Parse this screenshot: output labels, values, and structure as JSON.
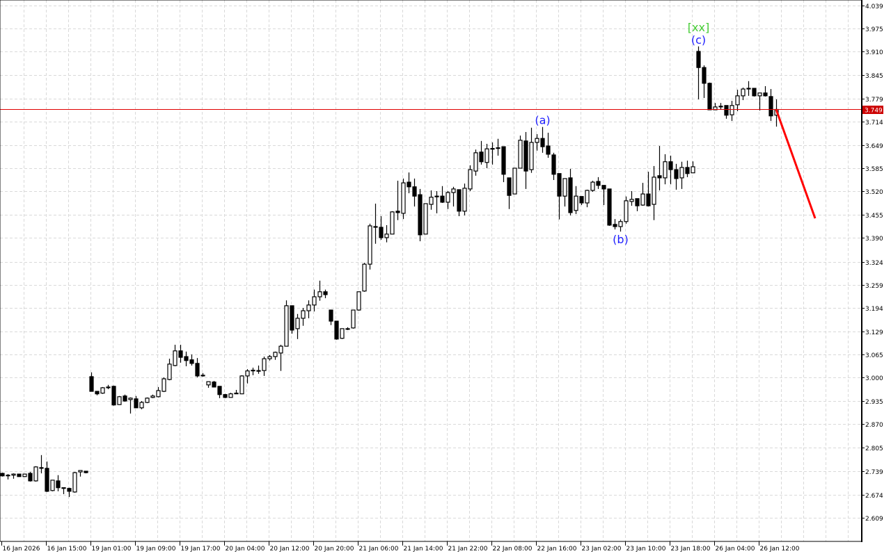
{
  "chart_data": {
    "type": "candlestick",
    "grid": true,
    "colors": {
      "bull_body": "#ffffff",
      "bear_body": "#000000",
      "outline": "#000000",
      "grid": "#d9d9d9",
      "current_price_line": "#e00000",
      "current_price_label_bg": "#cc0000",
      "forecast_line": "#ff0000",
      "wave_label": "#2020ff",
      "wave_degree_label": "#44cc33"
    },
    "y_axis": {
      "range": [
        2.609,
        4.039
      ],
      "ticks": [
        "4.039",
        "3.975",
        "3.910",
        "3.845",
        "3.779",
        "3.714",
        "3.649",
        "3.585",
        "3.520",
        "3.455",
        "3.390",
        "3.324",
        "3.259",
        "3.194",
        "3.129",
        "3.065",
        "3.000",
        "2.935",
        "2.870",
        "2.805",
        "2.739",
        "2.674",
        "2.609"
      ]
    },
    "x_axis": {
      "ticks": [
        {
          "bar": 0,
          "label": "16 Jan 2026"
        },
        {
          "bar": 8,
          "label": "16 Jan 15:00"
        },
        {
          "bar": 16,
          "label": "19 Jan 01:00"
        },
        {
          "bar": 24,
          "label": "19 Jan 09:00"
        },
        {
          "bar": 32,
          "label": "19 Jan 17:00"
        },
        {
          "bar": 40,
          "label": "20 Jan 04:00"
        },
        {
          "bar": 48,
          "label": "20 Jan 12:00"
        },
        {
          "bar": 56,
          "label": "20 Jan 20:00"
        },
        {
          "bar": 64,
          "label": "21 Jan 06:00"
        },
        {
          "bar": 72,
          "label": "21 Jan 14:00"
        },
        {
          "bar": 80,
          "label": "21 Jan 22:00"
        },
        {
          "bar": 88,
          "label": "22 Jan 08:00"
        },
        {
          "bar": 96,
          "label": "22 Jan 16:00"
        },
        {
          "bar": 104,
          "label": "23 Jan 02:00"
        },
        {
          "bar": 112,
          "label": "23 Jan 10:00"
        },
        {
          "bar": 120,
          "label": "23 Jan 18:00"
        },
        {
          "bar": 128,
          "label": "26 Jan 04:00"
        },
        {
          "bar": 136,
          "label": "26 Jan 12:00"
        }
      ]
    },
    "current_price": {
      "value": 3.749,
      "label": "3.749"
    },
    "candles_ohlc": [
      [
        2.733,
        2.735,
        2.724,
        2.726
      ],
      [
        2.728,
        2.731,
        2.716,
        2.728
      ],
      [
        2.728,
        2.733,
        2.718,
        2.731
      ],
      [
        2.731,
        2.731,
        2.724,
        2.724
      ],
      [
        2.724,
        2.731,
        2.724,
        2.731
      ],
      [
        2.733,
        2.737,
        2.71,
        2.712
      ],
      [
        2.712,
        2.753,
        2.71,
        2.751
      ],
      [
        2.749,
        2.784,
        2.733,
        2.748
      ],
      [
        2.747,
        2.766,
        2.681,
        2.683
      ],
      [
        2.685,
        2.714,
        2.683,
        2.714
      ],
      [
        2.712,
        2.728,
        2.683,
        2.693
      ],
      [
        2.693,
        2.693,
        2.675,
        2.691
      ],
      [
        2.691,
        2.693,
        2.667,
        2.683
      ],
      [
        2.681,
        2.737,
        2.679,
        2.735
      ],
      [
        2.737,
        2.741,
        2.724,
        2.741
      ],
      [
        2.739,
        2.739,
        2.733,
        2.735
      ],
      [
        3.003,
        3.015,
        2.962,
        2.962
      ],
      [
        2.962,
        2.962,
        2.951,
        2.955
      ],
      [
        2.957,
        2.974,
        2.955,
        2.972
      ],
      [
        2.974,
        2.98,
        2.968,
        2.973
      ],
      [
        2.976,
        2.978,
        2.922,
        2.924
      ],
      [
        2.925,
        2.949,
        2.924,
        2.947
      ],
      [
        2.949,
        2.953,
        2.933,
        2.935
      ],
      [
        2.939,
        2.945,
        2.9,
        2.943
      ],
      [
        2.941,
        2.949,
        2.916,
        2.916
      ],
      [
        2.916,
        2.935,
        2.912,
        2.931
      ],
      [
        2.931,
        2.945,
        2.929,
        2.943
      ],
      [
        2.945,
        2.953,
        2.943,
        2.949
      ],
      [
        2.947,
        2.974,
        2.945,
        2.964
      ],
      [
        2.962,
        3.001,
        2.96,
        2.997
      ],
      [
        2.995,
        3.053,
        2.993,
        3.038
      ],
      [
        3.034,
        3.092,
        3.032,
        3.075
      ],
      [
        3.075,
        3.092,
        3.042,
        3.057
      ],
      [
        3.059,
        3.073,
        3.032,
        3.048
      ],
      [
        3.05,
        3.065,
        3.034,
        3.04
      ],
      [
        3.04,
        3.055,
        3.001,
        3.005
      ],
      [
        3.007,
        3.013,
        3.003,
        3.006
      ],
      [
        2.98,
        2.989,
        2.972,
        2.989
      ],
      [
        2.988,
        2.991,
        2.974,
        2.974
      ],
      [
        2.976,
        2.976,
        2.943,
        2.953
      ],
      [
        2.953,
        2.955,
        2.943,
        2.945
      ],
      [
        2.945,
        2.958,
        2.945,
        2.955
      ],
      [
        2.957,
        2.966,
        2.955,
        2.955
      ],
      [
        2.955,
        3.007,
        2.955,
        3.005
      ],
      [
        3.005,
        3.024,
        2.984,
        3.019
      ],
      [
        3.02,
        3.028,
        3.007,
        3.021
      ],
      [
        3.02,
        3.034,
        3.011,
        3.019
      ],
      [
        3.02,
        3.059,
        3.005,
        3.053
      ],
      [
        3.053,
        3.063,
        3.048,
        3.059
      ],
      [
        3.059,
        3.073,
        3.05,
        3.071
      ],
      [
        3.069,
        3.092,
        3.019,
        3.088
      ],
      [
        3.088,
        3.216,
        3.088,
        3.201
      ],
      [
        3.201,
        3.201,
        3.123,
        3.133
      ],
      [
        3.137,
        3.178,
        3.108,
        3.166
      ],
      [
        3.166,
        3.195,
        3.145,
        3.187
      ],
      [
        3.187,
        3.216,
        3.166,
        3.203
      ],
      [
        3.203,
        3.246,
        3.185,
        3.226
      ],
      [
        3.226,
        3.271,
        3.215,
        3.24
      ],
      [
        3.24,
        3.246,
        3.222,
        3.232
      ],
      [
        3.189,
        3.189,
        3.147,
        3.158
      ],
      [
        3.158,
        3.158,
        3.106,
        3.108
      ],
      [
        3.11,
        3.137,
        3.108,
        3.137
      ],
      [
        3.137,
        3.141,
        3.133,
        3.137
      ],
      [
        3.139,
        3.189,
        3.137,
        3.189
      ],
      [
        3.189,
        3.24,
        3.187,
        3.24
      ],
      [
        3.242,
        3.321,
        3.24,
        3.317
      ],
      [
        3.317,
        3.43,
        3.302,
        3.424
      ],
      [
        3.422,
        3.486,
        3.374,
        3.421
      ],
      [
        3.42,
        3.451,
        3.385,
        3.391
      ],
      [
        3.391,
        3.426,
        3.378,
        3.401
      ],
      [
        3.401,
        3.465,
        3.401,
        3.463
      ],
      [
        3.465,
        3.55,
        3.44,
        3.461
      ],
      [
        3.459,
        3.556,
        3.443,
        3.544
      ],
      [
        3.546,
        3.573,
        3.515,
        3.533
      ],
      [
        3.533,
        3.556,
        3.478,
        3.507
      ],
      [
        3.511,
        3.527,
        3.381,
        3.399
      ],
      [
        3.401,
        3.486,
        3.401,
        3.486
      ],
      [
        3.484,
        3.523,
        3.469,
        3.504
      ],
      [
        3.507,
        3.521,
        3.459,
        3.506
      ],
      [
        3.507,
        3.535,
        3.488,
        3.49
      ],
      [
        3.49,
        3.521,
        3.471,
        3.517
      ],
      [
        3.517,
        3.533,
        3.478,
        3.527
      ],
      [
        3.525,
        3.525,
        3.451,
        3.465
      ],
      [
        3.465,
        3.542,
        3.453,
        3.529
      ],
      [
        3.527,
        3.593,
        3.521,
        3.581
      ],
      [
        3.577,
        3.637,
        3.564,
        3.628
      ],
      [
        3.63,
        3.661,
        3.595,
        3.603
      ],
      [
        3.601,
        3.653,
        3.585,
        3.639
      ],
      [
        3.639,
        3.657,
        3.595,
        3.64
      ],
      [
        3.642,
        3.667,
        3.62,
        3.641
      ],
      [
        3.645,
        3.645,
        3.546,
        3.568
      ],
      [
        3.558,
        3.558,
        3.471,
        3.509
      ],
      [
        3.513,
        3.585,
        3.513,
        3.585
      ],
      [
        3.585,
        3.676,
        3.585,
        3.663
      ],
      [
        3.661,
        3.686,
        3.527,
        3.577
      ],
      [
        3.581,
        3.698,
        3.572,
        3.657
      ],
      [
        3.657,
        3.68,
        3.634,
        3.668
      ],
      [
        3.668,
        3.7,
        3.628,
        3.645
      ],
      [
        3.647,
        3.684,
        3.614,
        3.624
      ],
      [
        3.622,
        3.628,
        3.552,
        3.568
      ],
      [
        3.57,
        3.57,
        3.442,
        3.507
      ],
      [
        3.507,
        3.556,
        3.478,
        3.556
      ],
      [
        3.558,
        3.583,
        3.453,
        3.461
      ],
      [
        3.467,
        3.535,
        3.457,
        3.507
      ],
      [
        3.506,
        3.506,
        3.482,
        3.488
      ],
      [
        3.488,
        3.525,
        3.476,
        3.523
      ],
      [
        3.523,
        3.55,
        3.519,
        3.546
      ],
      [
        3.548,
        3.56,
        3.527,
        3.537
      ],
      [
        3.537,
        3.537,
        3.482,
        3.527
      ],
      [
        3.527,
        3.527,
        3.424,
        3.426
      ],
      [
        3.428,
        3.443,
        3.414,
        3.422
      ],
      [
        3.422,
        3.442,
        3.408,
        3.436
      ],
      [
        3.436,
        3.506,
        3.43,
        3.494
      ],
      [
        3.492,
        3.521,
        3.48,
        3.498
      ],
      [
        3.5,
        3.5,
        3.465,
        3.48
      ],
      [
        3.482,
        3.544,
        3.48,
        3.513
      ],
      [
        3.513,
        3.575,
        3.478,
        3.48
      ],
      [
        3.484,
        3.591,
        3.44,
        3.56
      ],
      [
        3.564,
        3.647,
        3.523,
        3.558
      ],
      [
        3.558,
        3.624,
        3.54,
        3.603
      ],
      [
        3.603,
        3.62,
        3.54,
        3.581
      ],
      [
        3.581,
        3.597,
        3.525,
        3.556
      ],
      [
        3.558,
        3.603,
        3.527,
        3.587
      ],
      [
        3.587,
        3.606,
        3.56,
        3.57
      ],
      [
        3.572,
        3.604,
        3.572,
        3.589
      ],
      [
        3.911,
        3.925,
        3.777,
        3.866
      ],
      [
        3.866,
        3.872,
        3.781,
        3.822
      ],
      [
        3.822,
        3.824,
        3.748,
        3.748
      ],
      [
        3.748,
        3.767,
        3.748,
        3.756
      ],
      [
        3.758,
        3.767,
        3.748,
        3.758
      ],
      [
        3.76,
        3.76,
        3.723,
        3.733
      ],
      [
        3.734,
        3.773,
        3.717,
        3.76
      ],
      [
        3.762,
        3.804,
        3.744,
        3.787
      ],
      [
        3.787,
        3.81,
        3.775,
        3.806
      ],
      [
        3.808,
        3.828,
        3.787,
        3.808
      ],
      [
        3.808,
        3.808,
        3.785,
        3.787
      ],
      [
        3.787,
        3.795,
        3.746,
        3.795
      ],
      [
        3.795,
        3.814,
        3.785,
        3.787
      ],
      [
        3.785,
        3.806,
        3.717,
        3.731
      ],
      [
        3.733,
        3.777,
        3.701,
        3.749
      ]
    ],
    "annotations": [
      {
        "text": "(a)",
        "bar": 97,
        "anchor": "above-high",
        "color_key": "wave_label"
      },
      {
        "text": "(b)",
        "bar": 111,
        "anchor": "below-low",
        "color_key": "wave_label"
      },
      {
        "text": "(c)",
        "bar": 125,
        "anchor": "above-high",
        "color_key": "wave_label"
      },
      {
        "text": "[xx]",
        "bar": 125,
        "anchor": "above-high-2",
        "color_key": "wave_degree_label"
      }
    ],
    "forecast_line": {
      "from": {
        "bar": 139,
        "price": 3.749
      },
      "to": {
        "bar": 146,
        "price": 3.445
      }
    }
  }
}
